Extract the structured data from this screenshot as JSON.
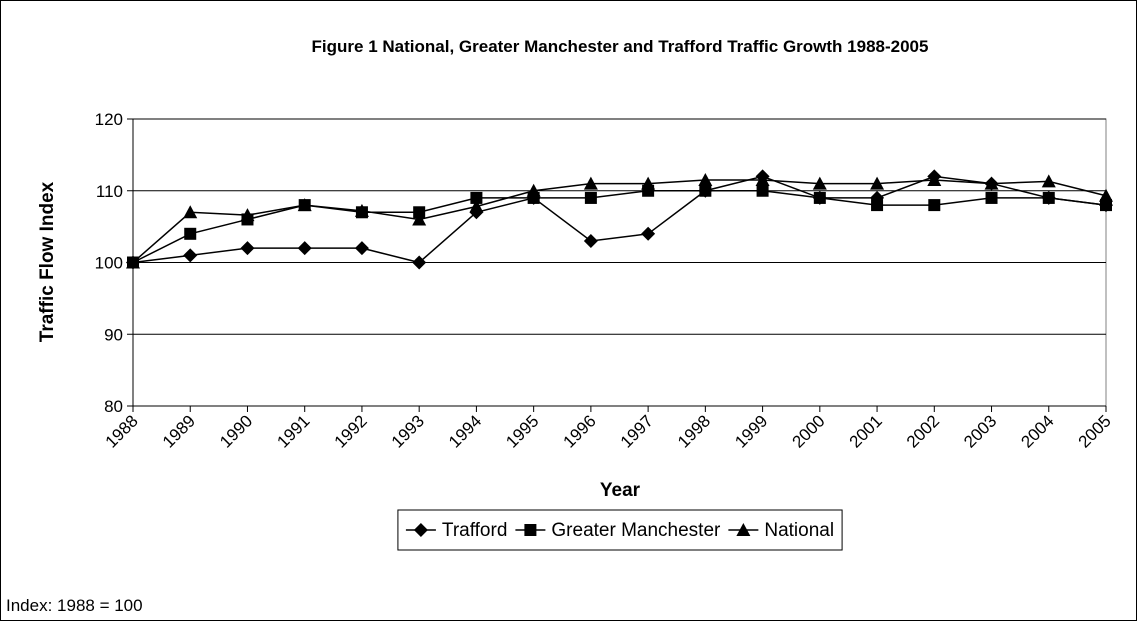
{
  "chart_data": {
    "type": "line",
    "title": "Figure 1 National, Greater Manchester and Trafford Traffic Growth 1988-2005",
    "x_label": "Year",
    "y_label": "Traffic Flow Index",
    "categories": [
      "1988",
      "1989",
      "1990",
      "1991",
      "1992",
      "1993",
      "1994",
      "1995",
      "1996",
      "1997",
      "1998",
      "1999",
      "2000",
      "2001",
      "2002",
      "2003",
      "2004",
      "2005"
    ],
    "series": [
      {
        "name": "Trafford",
        "color": "#000000",
        "marker": "diamond",
        "values": [
          100,
          101,
          102,
          102,
          102,
          100,
          107,
          109,
          103,
          104,
          110,
          112,
          109,
          109,
          112,
          111,
          109,
          108
        ]
      },
      {
        "name": "Greater Manchester",
        "color": "#000000",
        "marker": "square",
        "values": [
          100,
          104,
          106,
          108,
          107,
          107,
          109,
          109,
          109,
          110,
          110,
          110,
          109,
          108,
          108,
          109,
          109,
          108
        ]
      },
      {
        "name": "National",
        "color": "#000000",
        "marker": "triangle",
        "values": [
          100,
          107,
          106.6,
          108,
          107.2,
          106,
          107.8,
          110,
          111,
          111,
          111.5,
          111.5,
          111,
          111,
          111.5,
          111,
          111.3,
          109.3
        ]
      }
    ],
    "ylim": [
      80,
      120
    ],
    "yticks": [
      80,
      90,
      100,
      110,
      120
    ],
    "grid": true,
    "legend": "bottom",
    "note": "Index: 1988 = 100"
  }
}
